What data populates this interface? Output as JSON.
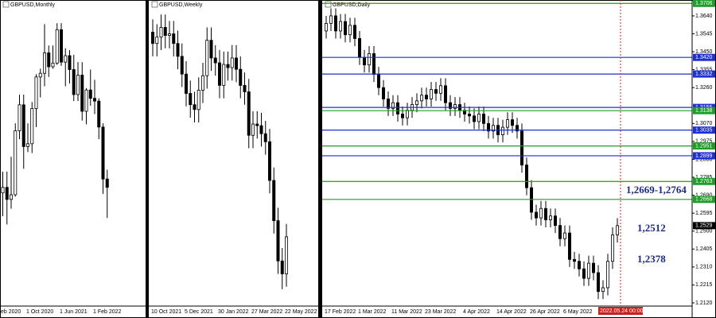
{
  "chart_data": [
    {
      "type": "candlestick",
      "title": "GBPUSD,Monthly",
      "categories": [
        "eb 2020",
        null,
        null,
        null,
        null,
        null,
        null,
        null,
        "1 Oct 2020",
        null,
        null,
        null,
        null,
        null,
        null,
        null,
        "1 Jun 2021",
        null,
        null,
        null,
        null,
        null,
        null,
        null,
        "1 Feb 2022",
        null,
        null,
        null
      ],
      "open": [
        1.32,
        1.282,
        1.242,
        1.248,
        1.235,
        1.24,
        1.309,
        1.337,
        1.292,
        1.295,
        1.333,
        1.367,
        1.371,
        1.393,
        1.378,
        1.382,
        1.418,
        1.383,
        1.39,
        1.375,
        1.348,
        1.369,
        1.33,
        1.353,
        1.344,
        1.341,
        1.313,
        1.257
      ],
      "high": [
        1.321,
        1.32,
        1.265,
        1.265,
        1.281,
        1.317,
        1.348,
        1.348,
        1.317,
        1.34,
        1.37,
        1.376,
        1.424,
        1.401,
        1.401,
        1.425,
        1.425,
        1.398,
        1.396,
        1.391,
        1.383,
        1.383,
        1.355,
        1.375,
        1.364,
        1.344,
        1.317,
        1.267
      ],
      "low": [
        1.273,
        1.141,
        1.217,
        1.208,
        1.225,
        1.238,
        1.3,
        1.268,
        1.286,
        1.285,
        1.313,
        1.345,
        1.357,
        1.367,
        1.376,
        1.38,
        1.379,
        1.357,
        1.36,
        1.341,
        1.341,
        1.32,
        1.316,
        1.336,
        1.327,
        1.3,
        1.241,
        1.215
      ],
      "close": [
        1.282,
        1.242,
        1.248,
        1.235,
        1.24,
        1.309,
        1.337,
        1.292,
        1.295,
        1.333,
        1.367,
        1.371,
        1.393,
        1.378,
        1.382,
        1.418,
        1.383,
        1.39,
        1.375,
        1.348,
        1.369,
        1.33,
        1.353,
        1.344,
        1.341,
        1.313,
        1.257,
        1.248
      ],
      "ylim": [
        1.12,
        1.45
      ]
    },
    {
      "type": "candlestick",
      "title": "GBPUSD,Weekly",
      "categories": [
        "10 Oct 2021",
        null,
        null,
        null,
        null,
        null,
        null,
        null,
        "5 Dec 2021",
        null,
        null,
        null,
        null,
        null,
        null,
        null,
        "30 Jan 2022",
        null,
        null,
        null,
        null,
        null,
        null,
        null,
        "27 Mar 2022",
        null,
        null,
        null,
        null,
        null,
        null,
        null,
        "22 May 2022"
      ],
      "open": [
        1.375,
        1.368,
        1.372,
        1.378,
        1.373,
        1.374,
        1.368,
        1.36,
        1.349,
        1.337,
        1.33,
        1.327,
        1.339,
        1.348,
        1.37,
        1.359,
        1.356,
        1.342,
        1.355,
        1.353,
        1.359,
        1.352,
        1.342,
        1.338,
        1.311,
        1.318,
        1.317,
        1.312,
        1.307,
        1.283,
        1.258,
        1.233,
        1.225
      ],
      "high": [
        1.383,
        1.38,
        1.386,
        1.386,
        1.382,
        1.382,
        1.376,
        1.368,
        1.357,
        1.345,
        1.338,
        1.347,
        1.356,
        1.378,
        1.378,
        1.367,
        1.364,
        1.363,
        1.363,
        1.367,
        1.367,
        1.36,
        1.35,
        1.346,
        1.326,
        1.326,
        1.325,
        1.32,
        1.315,
        1.291,
        1.266,
        1.241,
        1.256
      ],
      "low": [
        1.36,
        1.36,
        1.364,
        1.365,
        1.365,
        1.36,
        1.352,
        1.341,
        1.329,
        1.322,
        1.319,
        1.319,
        1.331,
        1.34,
        1.351,
        1.348,
        1.334,
        1.334,
        1.345,
        1.345,
        1.344,
        1.334,
        1.33,
        1.303,
        1.303,
        1.309,
        1.304,
        1.299,
        1.275,
        1.25,
        1.225,
        1.2155,
        1.217
      ],
      "close": [
        1.368,
        1.372,
        1.378,
        1.373,
        1.374,
        1.368,
        1.36,
        1.349,
        1.337,
        1.33,
        1.327,
        1.339,
        1.348,
        1.37,
        1.359,
        1.356,
        1.342,
        1.355,
        1.353,
        1.359,
        1.352,
        1.342,
        1.338,
        1.311,
        1.318,
        1.317,
        1.312,
        1.307,
        1.283,
        1.258,
        1.233,
        1.225,
        1.248
      ],
      "ylim": [
        1.205,
        1.395
      ]
    },
    {
      "type": "candlestick",
      "title": "GBPUSD,Daily",
      "categories": [
        "17 Feb 2022",
        null,
        null,
        null,
        null,
        null,
        null,
        "1 Mar 2022",
        null,
        null,
        null,
        null,
        null,
        null,
        "11 Mar 2022",
        null,
        null,
        null,
        null,
        null,
        null,
        "23 Mar 2022",
        null,
        null,
        null,
        null,
        null,
        null,
        null,
        "4 Apr 2022",
        null,
        null,
        null,
        null,
        null,
        null,
        "14 Apr 2022",
        null,
        null,
        null,
        null,
        null,
        null,
        "26 Apr 2022",
        null,
        null,
        null,
        null,
        null,
        null,
        "6 May 2022",
        null,
        null,
        null,
        null,
        null,
        null,
        null,
        null,
        null,
        null,
        null
      ],
      "open": [
        1.356,
        1.36,
        1.364,
        1.356,
        1.361,
        1.354,
        1.359,
        1.352,
        1.342,
        1.338,
        1.344,
        1.333,
        1.326,
        1.32,
        1.315,
        1.318,
        1.312,
        1.31,
        1.314,
        1.317,
        1.319,
        1.322,
        1.32,
        1.325,
        1.323,
        1.327,
        1.318,
        1.315,
        1.317,
        1.314,
        1.312,
        1.311,
        1.308,
        1.312,
        1.307,
        1.303,
        1.306,
        1.301,
        1.305,
        1.309,
        1.306,
        1.303,
        1.285,
        1.273,
        1.26,
        1.257,
        1.262,
        1.256,
        1.258,
        1.253,
        1.246,
        1.249,
        1.235,
        1.234,
        1.23,
        1.225,
        1.233,
        1.228,
        1.218,
        1.22,
        1.234,
        1.248
      ],
      "high": [
        1.364,
        1.368,
        1.368,
        1.365,
        1.365,
        1.363,
        1.363,
        1.356,
        1.346,
        1.348,
        1.348,
        1.337,
        1.33,
        1.324,
        1.322,
        1.322,
        1.316,
        1.318,
        1.321,
        1.323,
        1.326,
        1.326,
        1.329,
        1.329,
        1.331,
        1.331,
        1.322,
        1.321,
        1.321,
        1.318,
        1.316,
        1.315,
        1.316,
        1.316,
        1.311,
        1.31,
        1.31,
        1.309,
        1.313,
        1.313,
        1.31,
        1.307,
        1.289,
        1.277,
        1.264,
        1.266,
        1.266,
        1.262,
        1.262,
        1.257,
        1.253,
        1.253,
        1.239,
        1.238,
        1.234,
        1.237,
        1.237,
        1.232,
        1.224,
        1.238,
        1.252,
        1.2569
      ],
      "low": [
        1.352,
        1.356,
        1.352,
        1.352,
        1.35,
        1.35,
        1.348,
        1.338,
        1.334,
        1.334,
        1.329,
        1.322,
        1.316,
        1.311,
        1.311,
        1.308,
        1.306,
        1.306,
        1.31,
        1.313,
        1.315,
        1.316,
        1.316,
        1.319,
        1.319,
        1.314,
        1.311,
        1.311,
        1.31,
        1.308,
        1.307,
        1.304,
        1.304,
        1.303,
        1.299,
        1.299,
        1.297,
        1.297,
        1.301,
        1.302,
        1.299,
        1.281,
        1.269,
        1.256,
        1.253,
        1.253,
        1.252,
        1.252,
        1.249,
        1.242,
        1.242,
        1.231,
        1.23,
        1.226,
        1.221,
        1.221,
        1.224,
        1.214,
        1.214,
        1.216,
        1.23,
        1.244
      ],
      "close": [
        1.36,
        1.364,
        1.356,
        1.361,
        1.354,
        1.359,
        1.352,
        1.342,
        1.338,
        1.344,
        1.333,
        1.326,
        1.32,
        1.315,
        1.318,
        1.312,
        1.31,
        1.314,
        1.317,
        1.319,
        1.322,
        1.32,
        1.325,
        1.323,
        1.327,
        1.318,
        1.315,
        1.317,
        1.314,
        1.312,
        1.311,
        1.308,
        1.312,
        1.307,
        1.303,
        1.306,
        1.301,
        1.305,
        1.309,
        1.306,
        1.303,
        1.285,
        1.273,
        1.26,
        1.257,
        1.262,
        1.256,
        1.258,
        1.253,
        1.246,
        1.249,
        1.235,
        1.234,
        1.23,
        1.225,
        1.233,
        1.228,
        1.218,
        1.22,
        1.234,
        1.248,
        1.2529
      ],
      "ylim": [
        1.2103,
        1.3724
      ],
      "yticks": [
        {
          "value": 1.364,
          "label": "1.3640"
        },
        1.3545,
        {
          "value": 1.345,
          "label": "1.3450"
        },
        1.3355,
        {
          "value": 1.326,
          "label": "1.3260"
        },
        {
          "value": 1.307,
          "label": "1.3070"
        },
        1.2975,
        {
          "value": 1.288,
          "label": "1.2880"
        },
        1.2785,
        {
          "value": 1.269,
          "label": "1.2690"
        },
        1.2595,
        {
          "value": 1.25,
          "label": "1.2500"
        },
        1.2405,
        {
          "value": 1.231,
          "label": "1.2310"
        },
        1.2215,
        {
          "value": 1.212,
          "label": "1.2120"
        }
      ],
      "levels": [
        {
          "value": 1.3706,
          "label": "1.3706",
          "color": "#1f9d2a"
        },
        {
          "value": 1.342,
          "label": "1.3420",
          "color": "#1f2fd0"
        },
        {
          "value": 1.3332,
          "label": "1.3332",
          "color": "#1f2fd0"
        },
        {
          "value": 1.3155,
          "label": "1.3155",
          "color": "#1f2fd0"
        },
        {
          "value": 1.3138,
          "label": "1.3138",
          "color": "#1f9d2a"
        },
        {
          "value": 1.3035,
          "label": "1.3035",
          "color": "#1f2fd0"
        },
        {
          "value": 1.2951,
          "label": "1.2951",
          "color": "#1f9d2a"
        },
        {
          "value": 1.2899,
          "label": "1.2899",
          "color": "#1f2fd0"
        },
        {
          "value": 1.2763,
          "label": "1.2763",
          "color": "#1f9d2a"
        },
        {
          "value": 1.2668,
          "label": "1.2668",
          "color": "#1f9d2a"
        }
      ],
      "last_price": {
        "value": 1.2529,
        "label": "1.2529"
      },
      "annotations": [
        "1,2669-1,2764",
        "1,2512",
        "1,2378"
      ],
      "cursor_label": "2022.05.24 00:00"
    }
  ]
}
